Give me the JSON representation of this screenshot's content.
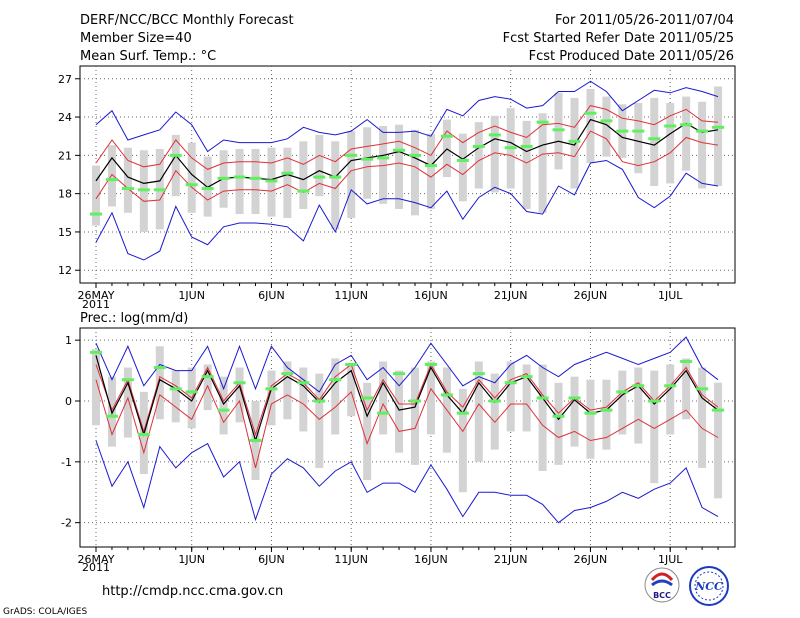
{
  "header": {
    "title": "DERF/NCC/BCC Monthly Forecast",
    "member_size": "Member Size=40",
    "variable": "Mean Surf. Temp.: °C",
    "period": "For 2011/05/26-2011/07/04",
    "started": "Fcst Started Refer Date 2011/05/25",
    "produced": "Fcst Produced Date 2011/05/26"
  },
  "footer": {
    "url": "http://cmdp.ncc.cma.gov.cn",
    "grads": "GrADS: COLA/IGES",
    "logo_bcc": "BCC",
    "logo_ncc": "NCC"
  },
  "colors": {
    "ensemble_mean": "#000000",
    "spread": "#e0303a",
    "extreme": "#1a1ad0",
    "box": "#d3d3d3",
    "observed": "#5fef5f"
  },
  "chart_data": [
    {
      "type": "line",
      "title": "Mean Surf. Temp.: °C",
      "xlabel_year": "2011",
      "ylim": [
        11,
        28
      ],
      "yticks": [
        12,
        15,
        18,
        21,
        24,
        27
      ],
      "x_tick_labels": [
        "26MAY",
        "1JUN",
        "6JUN",
        "11JUN",
        "16JUN",
        "21JUN",
        "26JUN",
        "1JUL"
      ],
      "x_tick_index": [
        0,
        6,
        11,
        16,
        21,
        26,
        31,
        36
      ],
      "series": {
        "mean": [
          19.0,
          20.8,
          19.3,
          18.8,
          19.0,
          21.0,
          19.5,
          18.5,
          19.2,
          19.3,
          19.2,
          19.1,
          19.5,
          19.1,
          19.8,
          19.3,
          20.6,
          20.8,
          21.0,
          21.3,
          20.8,
          20.2,
          21.5,
          20.7,
          21.6,
          22.3,
          22.0,
          21.3,
          21.8,
          22.1,
          21.8,
          23.8,
          23.4,
          22.4,
          22.1,
          21.8,
          22.7,
          23.5,
          22.8,
          23.0
        ],
        "upper_red": [
          20.4,
          22.2,
          20.6,
          20.1,
          20.3,
          22.2,
          20.8,
          19.9,
          20.4,
          20.5,
          20.5,
          20.4,
          20.8,
          20.3,
          21.0,
          20.5,
          21.5,
          21.7,
          21.9,
          22.1,
          21.6,
          21.0,
          22.9,
          22.0,
          22.8,
          23.3,
          22.8,
          22.4,
          23.4,
          23.5,
          23.2,
          24.9,
          24.6,
          23.9,
          23.7,
          23.4,
          24.1,
          24.6,
          23.7,
          23.6
        ],
        "lower_red": [
          17.6,
          19.5,
          18.4,
          17.4,
          17.5,
          19.8,
          18.5,
          17.5,
          18.2,
          18.3,
          18.3,
          18.2,
          18.7,
          18.1,
          18.8,
          18.4,
          19.8,
          20.1,
          20.2,
          20.4,
          20.1,
          19.3,
          20.3,
          19.5,
          20.6,
          21.2,
          21.0,
          20.4,
          21.1,
          21.2,
          20.9,
          22.9,
          22.3,
          20.5,
          20.2,
          20.5,
          21.2,
          22.4,
          22.0,
          21.8
        ],
        "upper_blue": [
          23.4,
          24.5,
          22.2,
          22.6,
          23.0,
          24.4,
          23.4,
          21.3,
          22.2,
          22.0,
          22.0,
          22.0,
          22.3,
          23.2,
          22.8,
          22.6,
          22.9,
          23.8,
          22.8,
          22.8,
          22.9,
          22.5,
          24.6,
          24.1,
          25.3,
          25.6,
          25.4,
          24.7,
          24.9,
          26.0,
          26.0,
          26.8,
          26.0,
          24.5,
          25.3,
          26.1,
          25.9,
          26.3,
          26.0,
          25.6
        ],
        "lower_blue": [
          14.2,
          16.5,
          13.3,
          12.8,
          13.5,
          17.0,
          14.6,
          14.0,
          15.4,
          15.7,
          15.7,
          15.6,
          15.4,
          14.3,
          17.1,
          15.0,
          18.3,
          17.2,
          17.6,
          17.6,
          17.3,
          16.9,
          18.2,
          16.0,
          17.7,
          18.5,
          18.0,
          16.6,
          16.4,
          18.6,
          17.9,
          20.4,
          20.6,
          19.9,
          17.7,
          16.9,
          17.8,
          19.6,
          18.8,
          18.6
        ],
        "box_low": [
          15.5,
          17.0,
          16.5,
          15.0,
          15.2,
          17.8,
          16.5,
          16.2,
          16.9,
          16.4,
          16.4,
          16.2,
          16.1,
          16.8,
          17.8,
          15.2,
          16.1,
          17.6,
          17.2,
          16.8,
          16.3,
          16.8,
          19.3,
          17.4,
          18.4,
          18.1,
          18.4,
          16.8,
          16.5,
          19.9,
          18.4,
          20.4,
          20.9,
          20.8,
          19.6,
          18.6,
          18.8,
          19.8,
          18.4,
          18.6
        ],
        "box_high": [
          20.2,
          21.8,
          21.6,
          21.4,
          21.5,
          22.6,
          22.0,
          20.9,
          21.4,
          21.5,
          21.5,
          21.6,
          21.6,
          22.1,
          22.6,
          22.1,
          22.9,
          23.2,
          23.3,
          23.4,
          23.0,
          22.7,
          23.8,
          22.7,
          23.6,
          24.1,
          24.7,
          23.7,
          24.3,
          25.9,
          25.5,
          26.2,
          25.6,
          25.0,
          25.1,
          25.5,
          25.1,
          25.6,
          25.2,
          26.4
        ],
        "observed": [
          16.4,
          19.1,
          18.4,
          18.3,
          18.3,
          21.0,
          18.7,
          18.4,
          19.2,
          19.3,
          19.2,
          19.0,
          19.6,
          18.2,
          19.3,
          19.3,
          21.0,
          20.7,
          20.8,
          21.4,
          21.0,
          20.2,
          22.5,
          20.6,
          21.7,
          22.6,
          21.6,
          21.7,
          23.6,
          23.0,
          22.1,
          24.3,
          23.7,
          22.9,
          22.9,
          22.3,
          23.3,
          23.4,
          22.9,
          23.2
        ]
      }
    },
    {
      "type": "line",
      "title": "Prec.: log(mm/d)",
      "xlabel_year": "2011",
      "ylim": [
        -2.4,
        1.2
      ],
      "yticks": [
        -2,
        -1,
        0,
        1
      ],
      "x_tick_labels": [
        "26MAY",
        "1JUN",
        "6JUN",
        "11JUN",
        "16JUN",
        "21JUN",
        "26JUN",
        "1JUL"
      ],
      "x_tick_index": [
        0,
        6,
        11,
        16,
        21,
        26,
        31,
        36
      ],
      "series": {
        "mean": [
          0.75,
          -0.2,
          0.3,
          -0.55,
          0.35,
          0.2,
          0.0,
          0.5,
          -0.05,
          0.25,
          -0.65,
          0.2,
          0.4,
          0.25,
          -0.02,
          0.3,
          0.5,
          -0.25,
          0.3,
          -0.15,
          -0.1,
          0.55,
          0.1,
          -0.2,
          0.3,
          -0.02,
          0.3,
          0.4,
          0.05,
          -0.3,
          0.02,
          -0.2,
          -0.15,
          0.1,
          0.25,
          -0.05,
          0.2,
          0.5,
          0.05,
          -0.15
        ],
        "upper_red": [
          0.6,
          -0.15,
          0.35,
          -0.5,
          0.4,
          0.25,
          0.05,
          0.55,
          0.0,
          0.3,
          -0.55,
          0.25,
          0.45,
          0.3,
          0.02,
          0.4,
          0.6,
          -0.15,
          0.35,
          -0.05,
          -0.05,
          0.6,
          0.15,
          -0.1,
          0.35,
          0.05,
          0.35,
          0.45,
          0.1,
          -0.2,
          0.05,
          -0.15,
          -0.1,
          0.15,
          0.3,
          0.0,
          0.25,
          0.55,
          0.1,
          -0.1
        ],
        "lower_red": [
          0.35,
          -0.55,
          0.05,
          -0.85,
          0.1,
          -0.1,
          -0.3,
          0.25,
          -0.35,
          0.0,
          -1.1,
          -0.05,
          0.1,
          -0.05,
          -0.3,
          -0.1,
          0.15,
          -0.7,
          -0.05,
          -0.5,
          -0.45,
          0.2,
          -0.15,
          -0.5,
          -0.05,
          -0.35,
          -0.05,
          -0.05,
          -0.4,
          -0.6,
          -0.5,
          -0.65,
          -0.6,
          -0.45,
          -0.3,
          -0.45,
          -0.3,
          -0.15,
          -0.45,
          -0.6
        ],
        "upper_blue": [
          0.95,
          0.35,
          0.9,
          0.25,
          0.6,
          0.5,
          0.5,
          0.9,
          0.2,
          0.9,
          0.2,
          0.9,
          0.55,
          0.35,
          0.15,
          0.6,
          0.75,
          0.35,
          0.55,
          0.25,
          0.55,
          0.95,
          0.6,
          0.25,
          0.4,
          0.3,
          0.6,
          0.75,
          0.55,
          0.4,
          0.6,
          0.7,
          0.8,
          0.7,
          0.6,
          0.7,
          0.8,
          1.05,
          0.55,
          0.35
        ],
        "lower_blue": [
          -0.65,
          -1.4,
          -1.0,
          -1.75,
          -0.75,
          -1.1,
          -0.85,
          -0.7,
          -1.25,
          -1.0,
          -1.95,
          -1.2,
          -0.95,
          -1.1,
          -1.4,
          -1.15,
          -1.0,
          -1.5,
          -1.35,
          -1.35,
          -1.5,
          -1.05,
          -1.45,
          -1.9,
          -1.5,
          -1.5,
          -1.55,
          -1.55,
          -1.7,
          -2.0,
          -1.8,
          -1.75,
          -1.65,
          -1.5,
          -1.6,
          -1.45,
          -1.35,
          -1.1,
          -1.75,
          -1.9
        ],
        "box_low": [
          -0.4,
          -0.75,
          -0.6,
          -1.2,
          -0.3,
          -0.35,
          -0.45,
          -0.15,
          -0.55,
          -0.35,
          -1.3,
          -0.4,
          -0.3,
          -0.5,
          -1.1,
          -0.55,
          -0.25,
          -1.3,
          -0.55,
          -0.85,
          -1.05,
          -0.55,
          -0.85,
          -1.5,
          -1.0,
          -0.8,
          -0.5,
          -0.5,
          -1.15,
          -1.05,
          -0.75,
          -0.95,
          -0.8,
          -0.55,
          -0.7,
          -1.35,
          -0.55,
          -0.3,
          -1.1,
          -1.6
        ],
        "box_high": [
          0.85,
          0.4,
          0.55,
          0.15,
          0.9,
          0.5,
          0.55,
          0.6,
          0.4,
          0.55,
          0.0,
          0.5,
          0.65,
          0.55,
          0.45,
          0.7,
          0.6,
          0.3,
          0.65,
          0.5,
          0.55,
          0.65,
          0.55,
          0.2,
          0.65,
          0.45,
          0.65,
          0.6,
          0.6,
          0.3,
          0.4,
          0.35,
          0.35,
          0.5,
          0.55,
          0.5,
          0.6,
          0.7,
          0.55,
          0.3
        ],
        "observed": [
          0.8,
          -0.25,
          0.35,
          -0.55,
          0.55,
          0.2,
          0.15,
          0.4,
          -0.15,
          0.3,
          -0.65,
          0.2,
          0.45,
          0.3,
          0.0,
          0.35,
          0.6,
          0.05,
          -0.2,
          0.45,
          0.0,
          0.6,
          0.1,
          -0.2,
          0.45,
          0.0,
          0.3,
          0.4,
          0.05,
          -0.25,
          0.05,
          -0.2,
          -0.15,
          0.15,
          0.25,
          0.0,
          0.25,
          0.65,
          0.2,
          -0.15
        ]
      }
    }
  ]
}
